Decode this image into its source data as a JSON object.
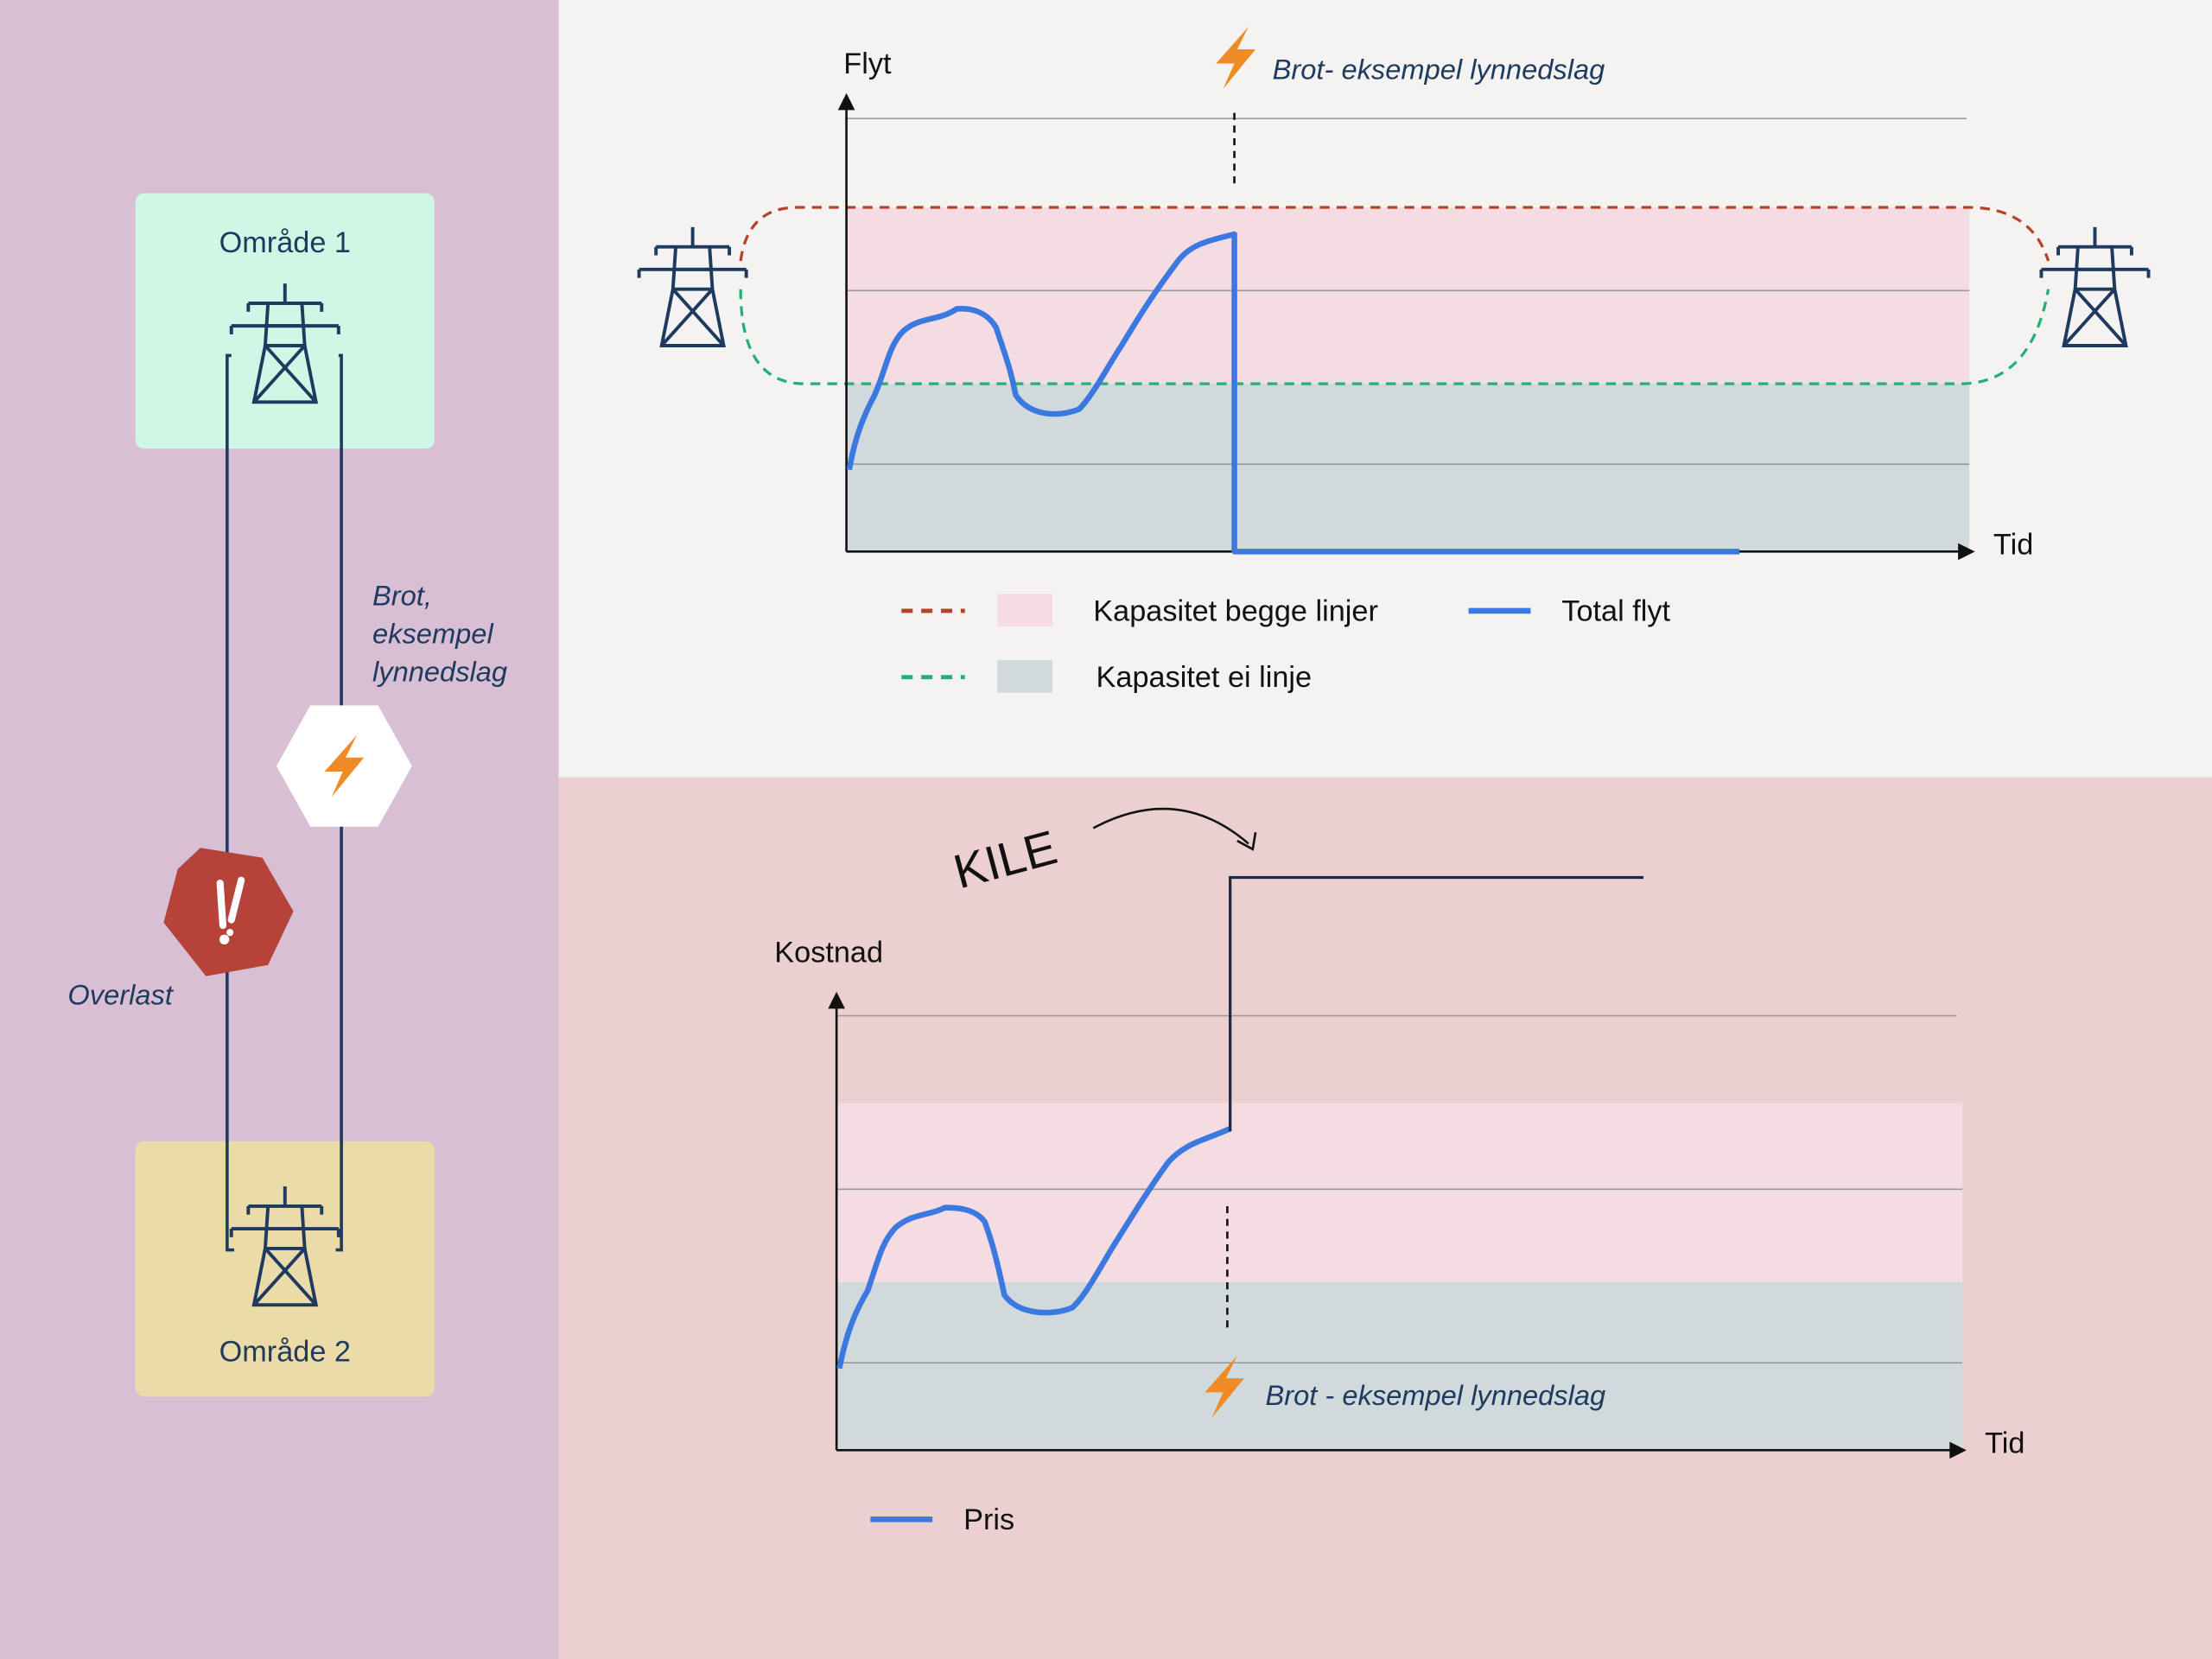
{
  "left": {
    "area1": "Område 1",
    "area2": "Område 2",
    "break_label": [
      "Brot,",
      "eksempel",
      "lynnedslag"
    ],
    "overload": "Overlast"
  },
  "flow": {
    "y_label": "Flyt",
    "x_label": "Tid",
    "break_label": "Brot- eksempel lynnedslag",
    "legend": {
      "both": "Kapasitet begge linjer",
      "total": "Total flyt",
      "one": "Kapasitet ei linje"
    }
  },
  "cost": {
    "kile": "KILE",
    "y_label": "Kostnad",
    "x_label": "Tid",
    "break_label": "Brot - eksempel lynnedslag",
    "legend": {
      "price": "Pris"
    }
  }
}
